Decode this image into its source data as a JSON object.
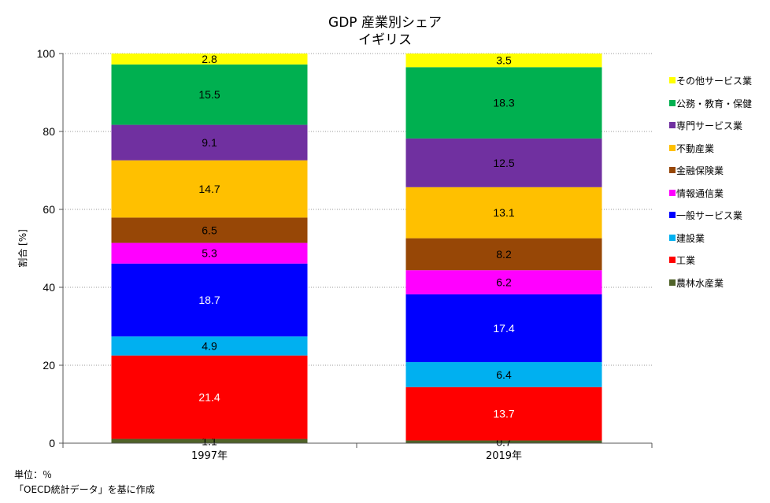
{
  "chart_data": {
    "type": "bar",
    "stacked": true,
    "title": "GDP 産業別シェア",
    "subtitle": "イギリス",
    "ylabel": "割合 [%]",
    "xlabel": "",
    "ylim": [
      0,
      100
    ],
    "yticks": [
      0,
      20,
      40,
      60,
      80,
      100
    ],
    "grid": true,
    "legend_position": "right",
    "categories": [
      "1997年",
      "2019年"
    ],
    "series": [
      {
        "name": "農林水産業",
        "color": "#4f6228",
        "values": [
          1.1,
          0.7
        ]
      },
      {
        "name": "工業",
        "color": "#ff0000",
        "values": [
          21.4,
          13.7
        ]
      },
      {
        "name": "建設業",
        "color": "#00b0f0",
        "values": [
          4.9,
          6.4
        ]
      },
      {
        "name": "一般サービス業",
        "color": "#0000ff",
        "values": [
          18.7,
          17.4
        ]
      },
      {
        "name": "情報通信業",
        "color": "#ff00ff",
        "values": [
          5.3,
          6.2
        ]
      },
      {
        "name": "金融保険業",
        "color": "#974706",
        "values": [
          6.5,
          8.2
        ]
      },
      {
        "name": "不動産業",
        "color": "#ffc000",
        "values": [
          14.7,
          13.1
        ]
      },
      {
        "name": "専門サービス業",
        "color": "#7030a0",
        "values": [
          9.1,
          12.5
        ]
      },
      {
        "name": "公務・教育・保健",
        "color": "#00b050",
        "values": [
          15.5,
          18.3
        ]
      },
      {
        "name": "その他サービス業",
        "color": "#ffff00",
        "values": [
          2.8,
          3.5
        ]
      }
    ]
  },
  "notes": {
    "unit": "単位：％",
    "source": "「OECD統計データ」を基に作成"
  }
}
